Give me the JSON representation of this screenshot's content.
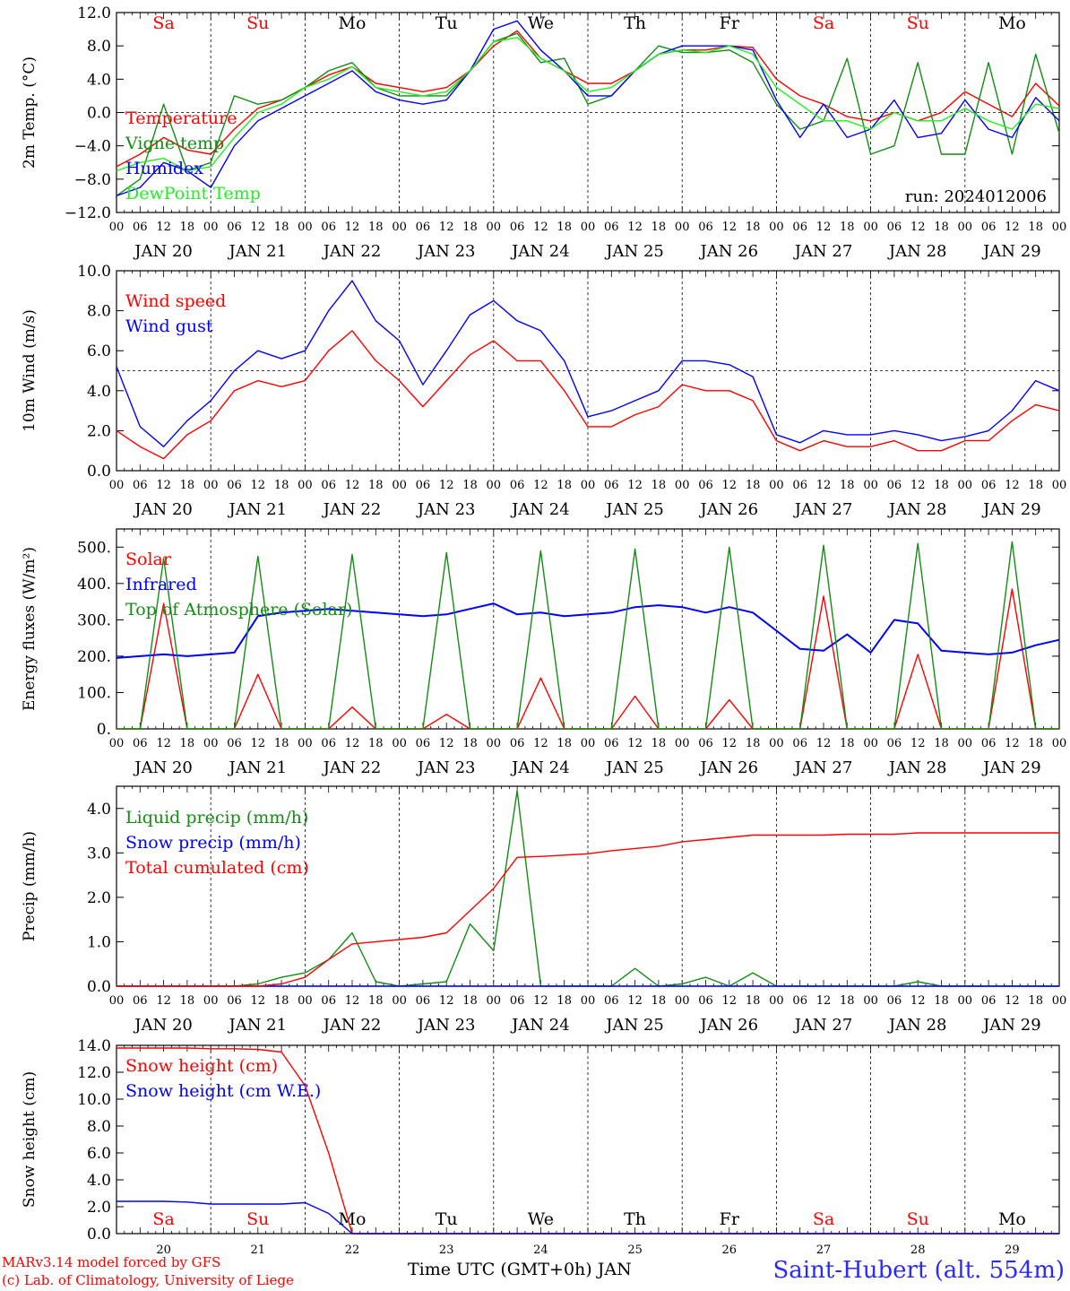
{
  "colors": {
    "red": "#ff0000",
    "green": "#148c14",
    "blue": "#0000ff",
    "lightgreen": "#22ee22",
    "weekend": "#ff0000",
    "weekday": "#000000"
  },
  "x_axis": {
    "start_day": "2024-01-20",
    "days": [
      "JAN 20",
      "JAN 21",
      "JAN 22",
      "JAN 23",
      "JAN 24",
      "JAN 25",
      "JAN 26",
      "JAN 27",
      "JAN 28",
      "JAN 29"
    ],
    "hour_ticks": [
      "00",
      "06",
      "12",
      "18"
    ],
    "last_tick": "00",
    "weekdays": [
      "Sa",
      "Su",
      "Mo",
      "Tu",
      "We",
      "Th",
      "Fr",
      "Sa",
      "Su",
      "Mo"
    ],
    "weekend_flags": [
      true,
      true,
      false,
      false,
      false,
      false,
      false,
      true,
      true,
      false
    ],
    "bottom_day_numbers": [
      "20",
      "21",
      "22",
      "23",
      "24",
      "25",
      "26",
      "27",
      "28",
      "29"
    ]
  },
  "footer": {
    "model_line": "MARv3.14 model forced by GFS",
    "credit_line": "(c) Lab. of Climatology, University of Liege",
    "axis_title": "Time UTC (GMT+0h) JAN",
    "station": "Saint-Hubert (alt. 554m)"
  },
  "chart_data": [
    {
      "type": "line",
      "ylabel": "2m Temp. (°C)",
      "ylim": [
        -12,
        12
      ],
      "yticks": [
        "12.0",
        "8.0",
        "4.0",
        "0.0",
        "−4.0",
        "−8.0",
        "−12.0"
      ],
      "ref_line": 0,
      "annotation": "run: 2024012006",
      "x_hours": [
        0,
        6,
        12,
        18,
        24,
        30,
        36,
        42,
        48,
        54,
        60,
        66,
        72,
        78,
        84,
        90,
        96,
        102,
        108,
        114,
        120,
        126,
        132,
        138,
        144,
        150,
        156,
        162,
        168,
        174,
        180,
        186,
        192,
        198,
        204,
        210,
        216,
        222,
        228,
        234,
        240
      ],
      "series": [
        {
          "name": "Temperature",
          "color": "red",
          "values": [
            -6.5,
            -5,
            -3,
            -4.5,
            -5,
            -2,
            0.5,
            1.5,
            3,
            4.5,
            5.5,
            3.5,
            3,
            2.5,
            3,
            5,
            8,
            9.8,
            6.5,
            5,
            3.5,
            3.5,
            5,
            7,
            7.5,
            7.5,
            8,
            7.8,
            4,
            2,
            1,
            -0.5,
            -1,
            0,
            -1,
            0,
            2.5,
            1,
            -0.5,
            3.5,
            0.8
          ]
        },
        {
          "name": "Vigne temp",
          "color": "green",
          "values": [
            -10,
            -8,
            1,
            -7,
            -6,
            2,
            1,
            1.5,
            3,
            5,
            6,
            3,
            2,
            2,
            2,
            5,
            8.5,
            9.5,
            6,
            6.5,
            1,
            2,
            5,
            8,
            7.2,
            7.2,
            7.5,
            6,
            1,
            -2,
            -1,
            6.5,
            -5,
            -4,
            6,
            -5,
            -5,
            6,
            -5,
            7,
            -2.5
          ]
        },
        {
          "name": "Humidex",
          "color": "blue",
          "values": [
            -10,
            -9,
            -6,
            -7,
            -9,
            -4,
            -1,
            0.5,
            2,
            3.5,
            5,
            2.5,
            1.5,
            1,
            1.5,
            5,
            10,
            11,
            7.5,
            5,
            2,
            2,
            5,
            7,
            8,
            8,
            8,
            7.5,
            1.5,
            -3,
            1,
            -3,
            -2,
            1.5,
            -3,
            -2.5,
            1.5,
            -2,
            -3,
            1.8,
            -1
          ]
        },
        {
          "name": "DewPoint Temp",
          "color": "lightgreen",
          "values": [
            -7,
            -6,
            -5.5,
            -7,
            -6.5,
            -3,
            0,
            1,
            3,
            4,
            5.5,
            3,
            2.5,
            2,
            2.5,
            5,
            8.5,
            9,
            6.5,
            5,
            2.5,
            3,
            5,
            7,
            7.5,
            7.2,
            8,
            7,
            3,
            1,
            -1,
            -1,
            -2,
            0,
            -1,
            -1,
            0.5,
            -1,
            -2,
            1,
            0.5
          ]
        }
      ]
    },
    {
      "type": "line",
      "ylabel": "10m Wind (m/s)",
      "ylim": [
        0,
        10
      ],
      "yticks": [
        "10.0",
        "8.0",
        "6.0",
        "4.0",
        "2.0",
        "0.0"
      ],
      "ref_line": 5,
      "x_hours": [
        0,
        6,
        12,
        18,
        24,
        30,
        36,
        42,
        48,
        54,
        60,
        66,
        72,
        78,
        84,
        90,
        96,
        102,
        108,
        114,
        120,
        126,
        132,
        138,
        144,
        150,
        156,
        162,
        168,
        174,
        180,
        186,
        192,
        198,
        204,
        210,
        216,
        222,
        228,
        234,
        240
      ],
      "series": [
        {
          "name": "Wind speed",
          "color": "red",
          "values": [
            2,
            1.2,
            0.6,
            1.8,
            2.5,
            4,
            4.5,
            4.2,
            4.5,
            6,
            7,
            5.5,
            4.5,
            3.2,
            4.5,
            5.8,
            6.5,
            5.5,
            5.5,
            4,
            2.2,
            2.2,
            2.8,
            3.2,
            4.3,
            4,
            4,
            3.5,
            1.5,
            1,
            1.5,
            1.2,
            1.2,
            1.5,
            1,
            1,
            1.5,
            1.5,
            2.5,
            3.3,
            3
          ]
        },
        {
          "name": "Wind gust",
          "color": "blue",
          "values": [
            5.2,
            2.2,
            1.2,
            2.5,
            3.5,
            5,
            6,
            5.6,
            6,
            8,
            9.5,
            7.5,
            6.5,
            4.3,
            6,
            7.8,
            8.5,
            7.5,
            7,
            5.5,
            2.7,
            3,
            3.5,
            4,
            5.5,
            5.5,
            5.3,
            4.7,
            1.8,
            1.4,
            2,
            1.8,
            1.8,
            2,
            1.8,
            1.5,
            1.7,
            2,
            3,
            4.5,
            4
          ]
        }
      ]
    },
    {
      "type": "line",
      "ylabel": "Energy fluxes (W/m²)",
      "ylim": [
        0,
        550
      ],
      "yticks": [
        "500.",
        "400.",
        "300.",
        "200.",
        "100.",
        "0."
      ],
      "x_hours": [
        0,
        6,
        12,
        18,
        24,
        30,
        36,
        42,
        48,
        54,
        60,
        66,
        72,
        78,
        84,
        90,
        96,
        102,
        108,
        114,
        120,
        126,
        132,
        138,
        144,
        150,
        156,
        162,
        168,
        174,
        180,
        186,
        192,
        198,
        204,
        210,
        216,
        222,
        228,
        234,
        240
      ],
      "series": [
        {
          "name": "Solar",
          "color": "red",
          "values": [
            0,
            0,
            345,
            0,
            0,
            0,
            150,
            0,
            0,
            0,
            60,
            0,
            0,
            0,
            40,
            0,
            0,
            0,
            140,
            0,
            0,
            0,
            90,
            0,
            0,
            0,
            80,
            0,
            0,
            0,
            365,
            0,
            0,
            0,
            205,
            0,
            0,
            0,
            385,
            0,
            0
          ]
        },
        {
          "name": "Infrared",
          "color": "blue",
          "values": [
            195,
            200,
            205,
            200,
            205,
            210,
            310,
            320,
            325,
            330,
            325,
            320,
            315,
            310,
            315,
            330,
            345,
            315,
            320,
            310,
            315,
            320,
            335,
            340,
            335,
            320,
            335,
            320,
            270,
            220,
            215,
            260,
            210,
            300,
            290,
            215,
            210,
            205,
            210,
            230,
            245
          ]
        },
        {
          "name": "Top of Atmosphere (Solar)",
          "color": "green",
          "values": [
            0,
            0,
            470,
            0,
            0,
            0,
            475,
            0,
            0,
            0,
            480,
            0,
            0,
            0,
            485,
            0,
            0,
            0,
            490,
            0,
            0,
            0,
            495,
            0,
            0,
            0,
            500,
            0,
            0,
            0,
            505,
            0,
            0,
            0,
            510,
            0,
            0,
            0,
            515,
            0,
            0
          ]
        }
      ]
    },
    {
      "type": "line",
      "ylabel": "Precip (mm/h)",
      "ylim": [
        0,
        4.5
      ],
      "yticks": [
        "4.0",
        "3.0",
        "2.0",
        "1.0",
        "0.0"
      ],
      "x_hours": [
        0,
        6,
        12,
        18,
        24,
        30,
        36,
        42,
        48,
        54,
        60,
        66,
        72,
        78,
        84,
        90,
        96,
        102,
        108,
        114,
        120,
        126,
        132,
        138,
        144,
        150,
        156,
        162,
        168,
        174,
        180,
        186,
        192,
        198,
        204,
        210,
        216,
        222,
        228,
        234,
        240
      ],
      "series": [
        {
          "name": "Liquid precip (mm/h)",
          "color": "green",
          "values": [
            0,
            0,
            0,
            0,
            0,
            0,
            0.05,
            0.2,
            0.3,
            0.6,
            1.2,
            0.1,
            0,
            0.05,
            0.1,
            1.4,
            0.8,
            4.4,
            0,
            0,
            0,
            0,
            0.4,
            0,
            0.05,
            0.2,
            0,
            0.3,
            0,
            0,
            0,
            0,
            0,
            0,
            0.1,
            0,
            0,
            0,
            0,
            0,
            0
          ]
        },
        {
          "name": "Snow precip (mm/h)",
          "color": "blue",
          "values": [
            0,
            0,
            0,
            0,
            0,
            0,
            0,
            0,
            0,
            0,
            0,
            0,
            0,
            0,
            0,
            0,
            0,
            0,
            0,
            0,
            0,
            0,
            0,
            0,
            0,
            0,
            0,
            0,
            0,
            0,
            0,
            0,
            0,
            0,
            0,
            0,
            0,
            0,
            0,
            0,
            0
          ]
        },
        {
          "name": "Total cumulated (cm)",
          "color": "red",
          "values": [
            0,
            0,
            0,
            0,
            0,
            0,
            0,
            0.05,
            0.2,
            0.6,
            0.95,
            1.0,
            1.05,
            1.1,
            1.2,
            1.7,
            2.2,
            2.9,
            2.92,
            2.95,
            2.98,
            3.05,
            3.1,
            3.15,
            3.25,
            3.3,
            3.35,
            3.4,
            3.4,
            3.4,
            3.4,
            3.42,
            3.42,
            3.42,
            3.45,
            3.45,
            3.45,
            3.45,
            3.45,
            3.45,
            3.45
          ]
        }
      ]
    },
    {
      "type": "line",
      "ylabel": "Snow height (cm)",
      "ylim": [
        0,
        14
      ],
      "yticks": [
        "14.0",
        "12.0",
        "10.0",
        "8.0",
        "6.0",
        "4.0",
        "2.0",
        "0.0"
      ],
      "x_hours": [
        0,
        6,
        12,
        18,
        24,
        30,
        36,
        42,
        48,
        54,
        60,
        66,
        72,
        78,
        84,
        90,
        96,
        102,
        108,
        114,
        120,
        126,
        132,
        138,
        144,
        150,
        156,
        162,
        168,
        174,
        180,
        186,
        192,
        198,
        204,
        210,
        216,
        222,
        228,
        234,
        240
      ],
      "series": [
        {
          "name": "Snow height (cm)",
          "color": "red",
          "values": [
            13.8,
            13.8,
            13.8,
            13.8,
            13.75,
            13.75,
            13.7,
            13.5,
            11,
            6,
            0,
            0,
            0,
            0,
            0,
            0,
            0,
            0,
            0,
            0,
            0,
            0,
            0,
            0,
            0,
            0,
            0,
            0,
            0,
            0,
            0,
            0,
            0,
            0,
            0,
            0,
            0,
            0,
            0,
            0,
            0
          ]
        },
        {
          "name": "Snow height (cm W.E.)",
          "color": "blue",
          "values": [
            2.4,
            2.4,
            2.4,
            2.35,
            2.2,
            2.2,
            2.2,
            2.2,
            2.3,
            1.5,
            0,
            0,
            0,
            0,
            0,
            0,
            0,
            0,
            0,
            0,
            0,
            0,
            0,
            0,
            0,
            0,
            0,
            0,
            0,
            0,
            0,
            0,
            0,
            0,
            0,
            0,
            0,
            0,
            0,
            0,
            0
          ]
        }
      ]
    }
  ]
}
